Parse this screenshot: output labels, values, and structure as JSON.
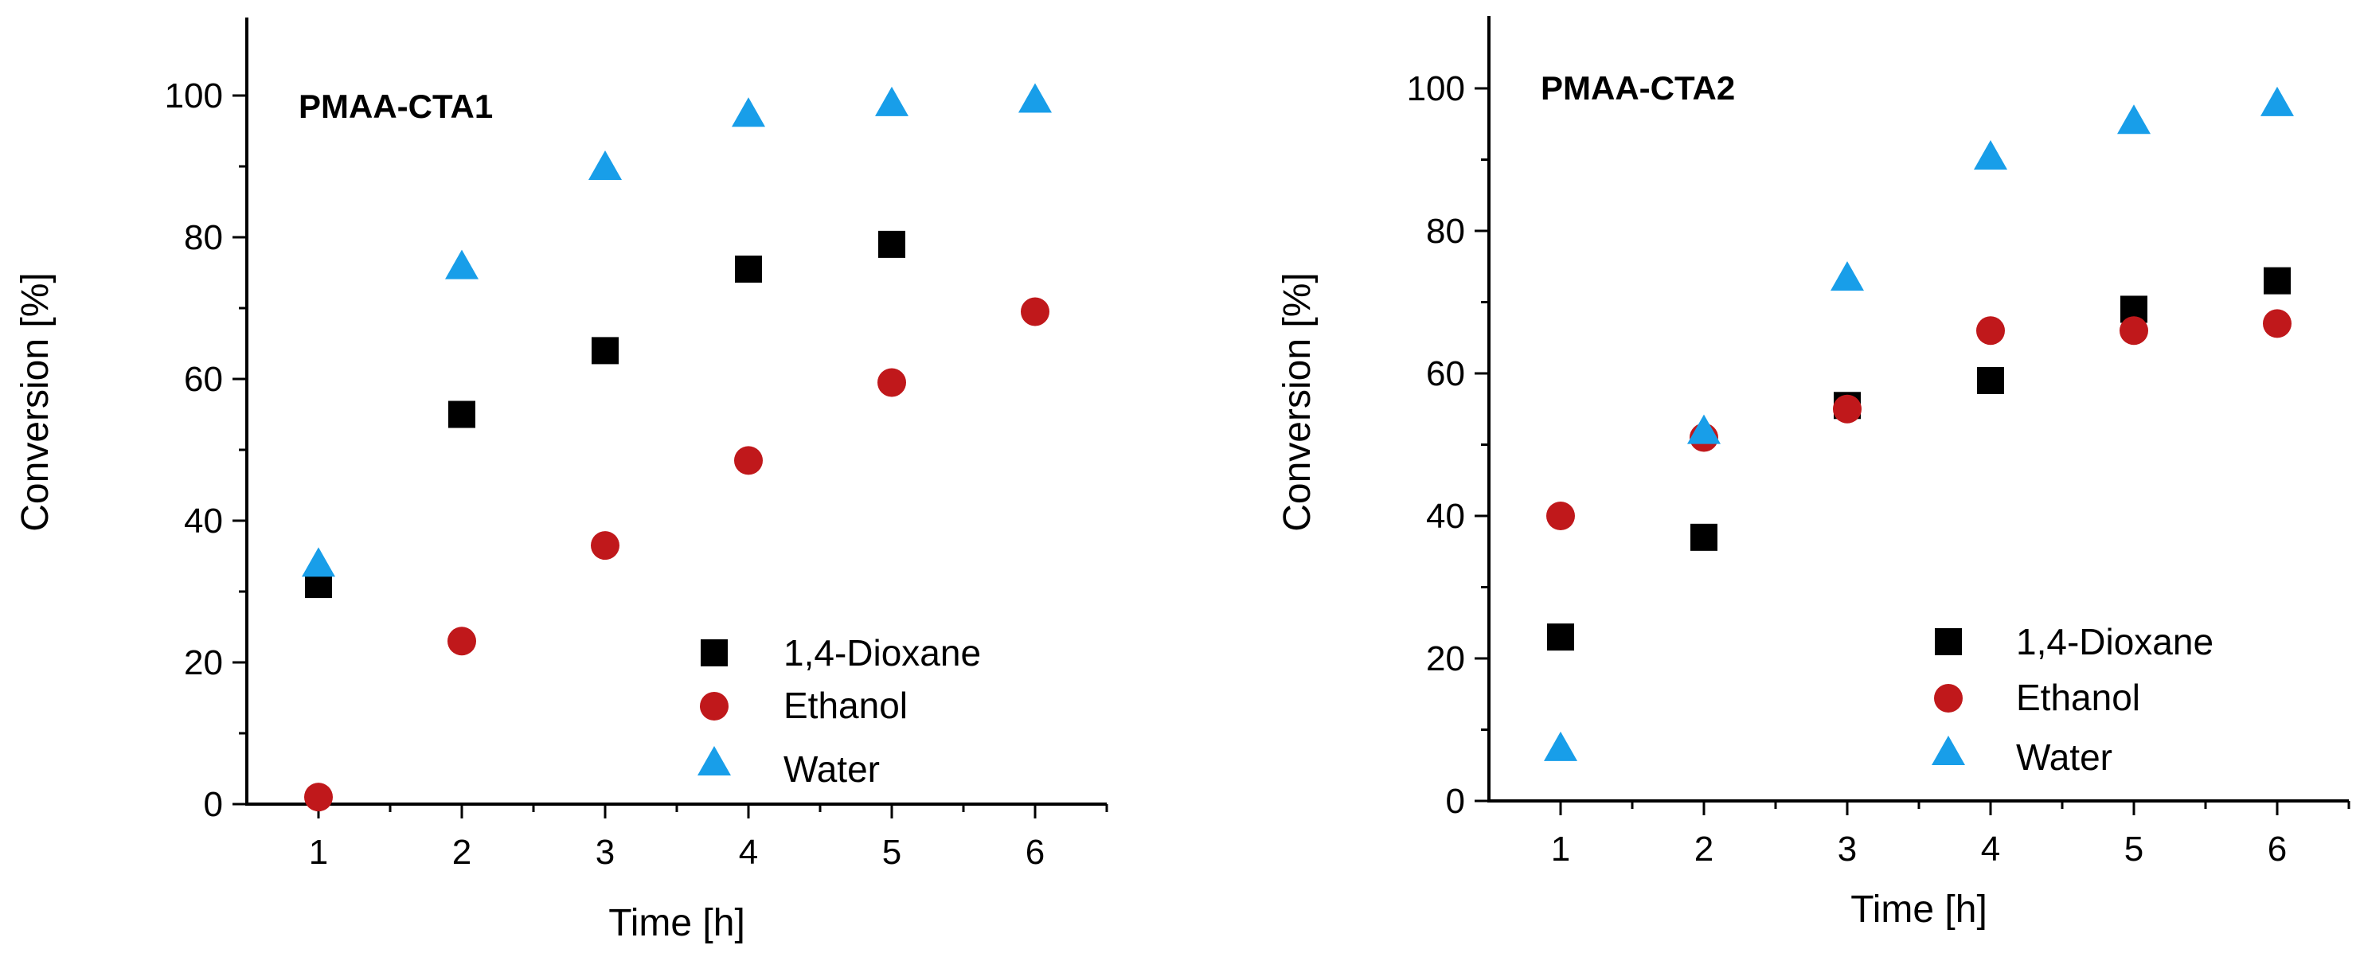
{
  "chart_data": [
    {
      "type": "scatter",
      "title": "PMAA-CTA1",
      "xlabel": "Time [h]",
      "ylabel": "Conversion [%]",
      "xlim": [
        0.5,
        6.5
      ],
      "ylim": [
        0,
        110
      ],
      "xticks": [
        1,
        2,
        3,
        4,
        5,
        6
      ],
      "yticks": [
        0,
        20,
        40,
        60,
        80,
        100
      ],
      "x": [
        1,
        2,
        3,
        4,
        5,
        6
      ],
      "legend_position": "bottom-right",
      "series": [
        {
          "name": "1,4-Dioxane",
          "marker": "square",
          "color": "#000000",
          "values": [
            31,
            55,
            64,
            75.5,
            79,
            null
          ]
        },
        {
          "name": "Ethanol",
          "marker": "circle",
          "color": "#c0181b",
          "values": [
            1,
            23,
            36.5,
            48.5,
            59.5,
            69.5
          ]
        },
        {
          "name": "Water",
          "marker": "triangle",
          "color": "#189ee9",
          "values": [
            34,
            76,
            90,
            97.5,
            99,
            99.5
          ]
        }
      ]
    },
    {
      "type": "scatter",
      "title": "PMAA-CTA2",
      "xlabel": "Time [h]",
      "ylabel": "Conversion [%]",
      "xlim": [
        0.5,
        6.5
      ],
      "ylim": [
        0,
        110
      ],
      "xticks": [
        1,
        2,
        3,
        4,
        5,
        6
      ],
      "yticks": [
        0,
        20,
        40,
        60,
        80,
        100
      ],
      "x": [
        1,
        2,
        3,
        4,
        5,
        6
      ],
      "legend_position": "bottom-right",
      "series": [
        {
          "name": "1,4-Dioxane",
          "marker": "square",
          "color": "#000000",
          "values": [
            23,
            37,
            55.5,
            59,
            69,
            73
          ]
        },
        {
          "name": "Ethanol",
          "marker": "circle",
          "color": "#c0181b",
          "values": [
            40,
            51,
            55,
            66,
            66,
            67
          ]
        },
        {
          "name": "Water",
          "marker": "triangle",
          "color": "#189ee9",
          "values": [
            7.5,
            52,
            73.5,
            90.5,
            95.5,
            98
          ]
        }
      ]
    }
  ]
}
